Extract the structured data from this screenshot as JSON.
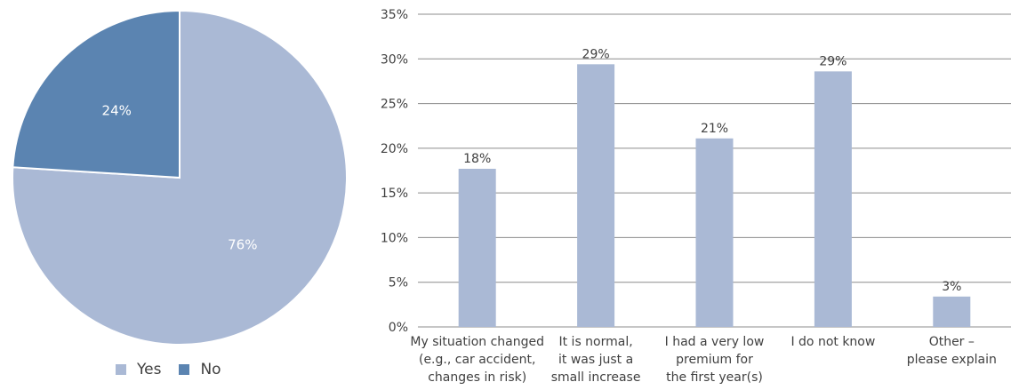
{
  "colors": {
    "yes": "#aab9d5",
    "no": "#5b84b1",
    "bar": "#aab9d5",
    "grid": "#8c8c8c",
    "text": "#404040",
    "slice_label_light": "#ffffff"
  },
  "chart_data": [
    {
      "type": "pie",
      "slices": [
        {
          "label": "Yes",
          "value": 76,
          "display": "76%"
        },
        {
          "label": "No",
          "value": 24,
          "display": "24%"
        }
      ],
      "legend": {
        "position": "bottom",
        "entries": [
          "Yes",
          "No"
        ]
      }
    },
    {
      "type": "bar",
      "categories": [
        [
          "My situation changed",
          "(e.g., car accident,",
          "changes in risk)"
        ],
        [
          "It is normal,",
          "it was just a",
          "small increase"
        ],
        [
          "I had a very low",
          "premium for",
          "the first year(s)"
        ],
        [
          "I do not know"
        ],
        [
          "Other –",
          "please explain"
        ]
      ],
      "values": [
        17.7,
        29.4,
        21.1,
        28.6,
        3.4
      ],
      "data_labels": [
        "18%",
        "29%",
        "21%",
        "29%",
        "3%"
      ],
      "ylim": [
        0,
        35
      ],
      "yticks": [
        0,
        5,
        10,
        15,
        20,
        25,
        30,
        35
      ],
      "ytick_labels": [
        "0%",
        "5%",
        "10%",
        "15%",
        "20%",
        "25%",
        "30%",
        "35%"
      ],
      "grid": true
    }
  ]
}
